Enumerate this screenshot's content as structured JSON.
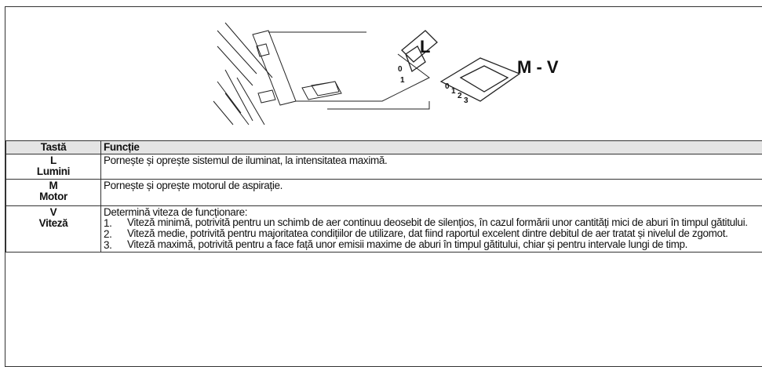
{
  "illustration": {
    "label_l": "L",
    "label_mv": "M - V",
    "switch_l_marks": [
      "0",
      "1"
    ],
    "switch_mv_marks": [
      "0",
      "1",
      "2",
      "3"
    ]
  },
  "table": {
    "header": [
      "Tastă",
      "Funcție"
    ],
    "rows": [
      {
        "key": "L",
        "key_name": "Lumini",
        "function": "Pornește și oprește sistemul de iluminat, la intensitatea maximă."
      },
      {
        "key": "M",
        "key_name": "Motor",
        "function": "Pornește și oprește motorul de aspirație."
      },
      {
        "key": "V",
        "key_name": "Viteză",
        "function": "Determină viteza de funcționare:",
        "items": [
          {
            "number": "1.",
            "text": "Viteză minimă, potrivită pentru un schimb de aer continuu deosebit de silențios, în cazul formării unor cantități mici de aburi în timpul gătitului."
          },
          {
            "number": "2.",
            "text": "Viteză medie, potrivită pentru majoritatea condițiilor de utilizare, dat fiind raportul excelent dintre debitul de aer tratat și nivelul de zgomot."
          },
          {
            "number": "3.",
            "text": "Viteză maximă, potrivită pentru a face față unor emisii maxime de aburi în timpul gătitului, chiar și pentru intervale lungi de timp."
          }
        ]
      }
    ]
  }
}
